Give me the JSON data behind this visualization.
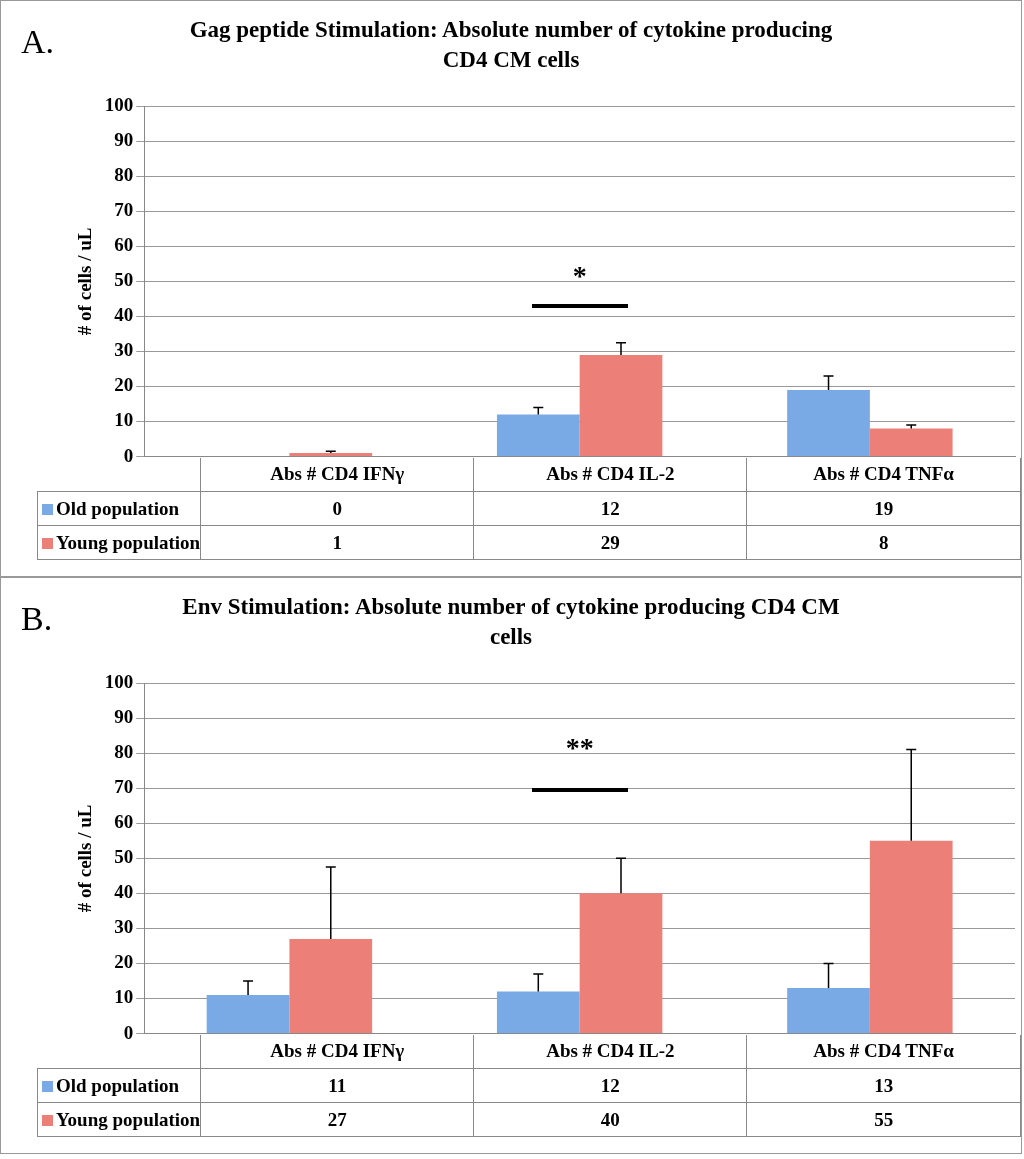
{
  "chart_data": [
    {
      "type": "bar",
      "title": "Gag peptide Stimulation: Absolute number of cytokine producing CD4 CM cells",
      "ylabel": "# of cells / uL",
      "categories": [
        "Abs # CD4 IFNγ",
        "Abs # CD4 IL-2",
        "Abs # CD4 TNFα"
      ],
      "series": [
        {
          "name": "Old population",
          "color": "#7aaae6",
          "values": [
            0,
            12,
            19
          ],
          "errors": [
            null,
            [
              12,
              14
            ],
            [
              19,
              23
            ]
          ]
        },
        {
          "name": "Young population",
          "color": "#ec8079",
          "values": [
            1,
            29,
            8
          ],
          "errors": [
            [
              1,
              1.5
            ],
            [
              29,
              32.5
            ],
            [
              8,
              9
            ]
          ]
        }
      ],
      "ylim": [
        0,
        100
      ],
      "yticks": [
        0,
        10,
        20,
        30,
        40,
        50,
        60,
        70,
        80,
        90,
        100
      ],
      "grid": "y",
      "legend": "bottom",
      "data_labels": true,
      "annotations": [
        "A.",
        "*"
      ]
    },
    {
      "type": "bar",
      "title": "Env Stimulation: Absolute number of cytokine producing CD4 CM cells",
      "ylabel": "# of cells / uL",
      "categories": [
        "Abs # CD4 IFNγ",
        "Abs # CD4 IL-2",
        "Abs # CD4 TNFα"
      ],
      "series": [
        {
          "name": "Old population",
          "color": "#7aaae6",
          "values": [
            11,
            12,
            13
          ],
          "errors": [
            [
              11,
              15
            ],
            [
              12,
              17
            ],
            [
              13,
              20
            ]
          ]
        },
        {
          "name": "Young population",
          "color": "#ec8079",
          "values": [
            27,
            40,
            55
          ],
          "errors": [
            [
              27,
              47.5
            ],
            [
              40,
              50
            ],
            [
              55,
              81
            ]
          ]
        }
      ],
      "ylim": [
        0,
        100
      ],
      "yticks": [
        0,
        10,
        20,
        30,
        40,
        50,
        60,
        70,
        80,
        90,
        100
      ],
      "grid": "y",
      "legend": "bottom",
      "data_labels": true,
      "annotations": [
        "B.",
        "**"
      ]
    }
  ]
}
